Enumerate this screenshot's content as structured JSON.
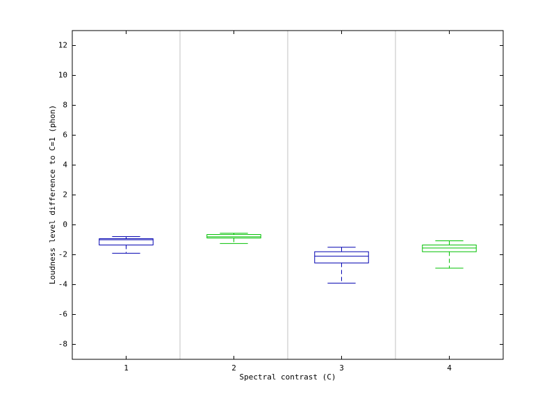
{
  "chart_data": {
    "type": "box",
    "x_label": "Spectral contrast (C)",
    "y_label": "Loudness level difference to C=1 (phon)",
    "categories": [
      "1",
      "2",
      "3",
      "4"
    ],
    "boxes": [
      {
        "color": "#0000b0",
        "whisker_low": -1.9,
        "q1": -1.35,
        "median": -1.0,
        "q3": -0.93,
        "whisker_high": -0.79
      },
      {
        "color": "#00c000",
        "whisker_low": -1.25,
        "q1": -0.88,
        "median": -0.8,
        "q3": -0.65,
        "whisker_high": -0.56
      },
      {
        "color": "#0000b0",
        "whisker_low": -3.9,
        "q1": -2.55,
        "median": -2.1,
        "q3": -1.8,
        "whisker_high": -1.5
      },
      {
        "color": "#00c000",
        "whisker_low": -2.9,
        "q1": -1.8,
        "median": -1.55,
        "q3": -1.35,
        "whisker_high": -1.07
      }
    ],
    "ylim": [
      -9,
      13
    ],
    "yticks": [
      -8,
      -6,
      -4,
      -2,
      0,
      2,
      4,
      6,
      8,
      10,
      12
    ],
    "separators": true,
    "separator_color": "#c0c0c0"
  }
}
